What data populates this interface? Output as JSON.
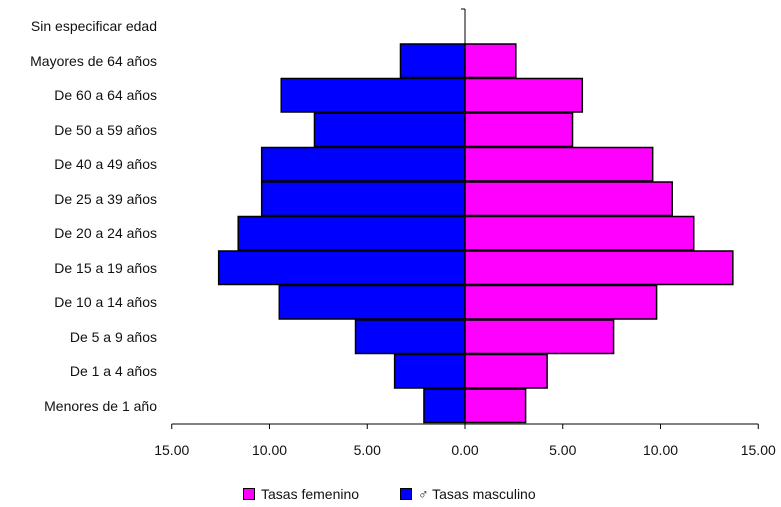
{
  "chart_data": {
    "type": "bar",
    "orientation": "horizontal",
    "layout": "population-pyramid",
    "categories": [
      "Sin especificar edad",
      "Mayores de 64 años",
      "De 60 a 64 años",
      "De 50 a 59 años",
      "De 40 a 49 años",
      "De 25 a 39 años",
      "De 20 a 24 años",
      "De 15 a 19 años",
      "De 10 a 14 años",
      "De 5 a 9 años",
      "De 1 a 4 años",
      "Menores de 1 año"
    ],
    "series": [
      {
        "name": "Tasas femenino",
        "color": "#ff00ff",
        "values": [
          0,
          2.6,
          6.0,
          5.5,
          9.6,
          10.6,
          11.7,
          13.7,
          9.8,
          7.6,
          4.2,
          3.1
        ]
      },
      {
        "name": "♂ Tasas masculino",
        "color": "#0000ff",
        "values": [
          0,
          3.3,
          9.4,
          7.7,
          10.4,
          10.4,
          11.6,
          12.6,
          9.5,
          5.6,
          3.6,
          2.1
        ]
      }
    ],
    "xlim": [
      -15,
      15
    ],
    "tick_labels": [
      "15.00",
      "10.00",
      "5.00",
      "0.00",
      "5.00",
      "10.00",
      "15.00"
    ],
    "legend_position": "bottom",
    "grid": false,
    "title": "",
    "xlabel": "",
    "ylabel": ""
  }
}
